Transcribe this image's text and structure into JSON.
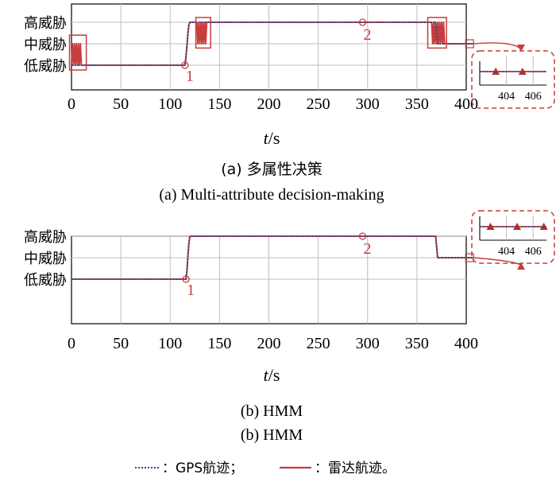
{
  "chart_data": [
    {
      "type": "line",
      "caption_cn": "(a) 多属性决策",
      "caption_en": "(a) Multi-attribute decision-making",
      "xlabel_var": "t",
      "xlabel_unit": "/s",
      "xlim": [
        0,
        400
      ],
      "x_ticks": [
        "0",
        "50",
        "100",
        "150",
        "200",
        "250",
        "300",
        "350",
        "400"
      ],
      "y_categories": [
        "低威胁",
        "中威胁",
        "高威胁"
      ],
      "series": [
        {
          "x": [
            0,
            1,
            2,
            3,
            4,
            5,
            6,
            7,
            8,
            9,
            10,
            115,
            116,
            117,
            118,
            119,
            120,
            121,
            127,
            128,
            129,
            130,
            131,
            132,
            133,
            134,
            135,
            136,
            137,
            138,
            365,
            366,
            367,
            368,
            369,
            370,
            371,
            372,
            373,
            374,
            375,
            376,
            377,
            378,
            379,
            407
          ],
          "y": [
            0,
            1,
            0,
            1,
            0,
            1,
            0,
            1,
            0,
            1,
            0,
            0,
            0.4,
            0.9,
            1.5,
            1.9,
            2,
            2,
            2,
            1,
            2,
            1,
            2,
            1,
            2,
            1,
            2,
            1,
            2,
            2,
            2,
            1,
            2,
            1,
            2,
            1,
            2,
            1,
            2,
            1,
            2,
            1,
            2,
            1,
            1,
            1
          ]
        },
        {
          "x": [
            0,
            115,
            116,
            117,
            118,
            119,
            120,
            121,
            369,
            370,
            371,
            407
          ],
          "y": [
            0,
            0,
            0.4,
            0.9,
            1.5,
            1.9,
            2,
            2,
            2,
            1.5,
            1,
            1
          ]
        }
      ],
      "markers": [
        {
          "label": "1",
          "x": 115,
          "y": 0
        },
        {
          "label": "2",
          "x": 295,
          "y": 2
        }
      ],
      "boxes": [
        {
          "x": [
            -2,
            15
          ],
          "y": [
            -0.1,
            1.4
          ]
        },
        {
          "x": [
            126,
            141
          ],
          "y": [
            0.8,
            2.2
          ]
        },
        {
          "x": [
            361,
            380
          ],
          "y": [
            0.8,
            2.2
          ]
        }
      ],
      "inset": {
        "x_ticks": [
          404,
          406
        ],
        "xlim": [
          402,
          407
        ],
        "markers_x": [
          403.2,
          405.2
        ],
        "level": 1
      }
    },
    {
      "type": "line",
      "caption_cn": "(b) HMM",
      "caption_en": "(b) HMM",
      "xlabel_var": "t",
      "xlabel_unit": "/s",
      "xlim": [
        0,
        400
      ],
      "x_ticks": [
        "0",
        "50",
        "100",
        "150",
        "200",
        "250",
        "300",
        "350",
        "400"
      ],
      "y_categories": [
        "低威胁",
        "中威胁",
        "高威胁"
      ],
      "series": [
        {
          "x": [
            0,
            116,
            117,
            118,
            119,
            120,
            121,
            369,
            370,
            371,
            407
          ],
          "y": [
            0,
            0,
            0.4,
            1.1,
            1.7,
            2,
            2,
            2,
            1.5,
            1,
            1
          ]
        },
        {
          "x": [
            0,
            116,
            117,
            118,
            119,
            120,
            121,
            369,
            370,
            371,
            407
          ],
          "y": [
            0,
            0,
            0.4,
            1.1,
            1.7,
            2,
            2,
            2,
            1.5,
            1,
            1
          ]
        }
      ],
      "markers": [
        {
          "label": "1",
          "x": 116,
          "y": 0
        },
        {
          "label": "2",
          "x": 295,
          "y": 2
        }
      ],
      "boxes": [],
      "inset": {
        "x_ticks": [
          404,
          406
        ],
        "xlim": [
          402,
          407
        ],
        "markers_x": [
          402.8,
          404.8,
          406.8
        ],
        "level": 1
      }
    }
  ],
  "legend": [
    {
      "label": "：GPS航迹；",
      "color": "#2c4a96",
      "style": "dotted"
    },
    {
      "label": "：雷达航迹。",
      "color": "#c83c3c",
      "style": "solid"
    }
  ],
  "colors": {
    "gps": "#2c4a96",
    "radar": "#c83c3c",
    "grid": "#bdbdbd",
    "annotation": "#c83c3c"
  }
}
